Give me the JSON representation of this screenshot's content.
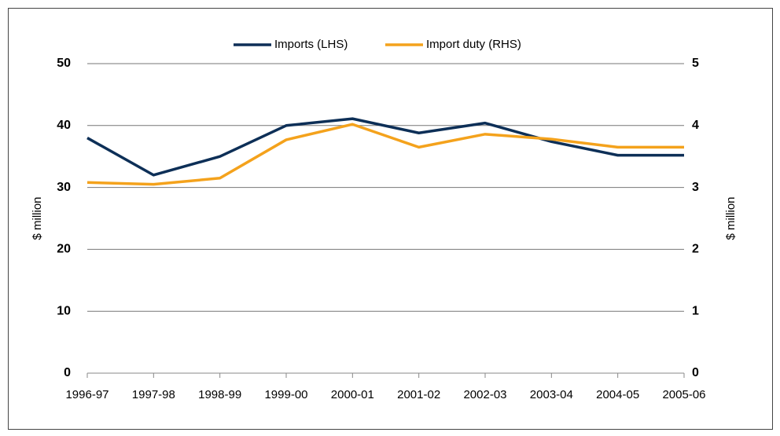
{
  "chart_data": {
    "type": "line",
    "categories": [
      "1996-97",
      "1997-98",
      "1998-99",
      "1999-00",
      "2000-01",
      "2001-02",
      "2002-03",
      "2003-04",
      "2004-05",
      "2005-06"
    ],
    "series": [
      {
        "name": "Imports (LHS)",
        "color": "#0d2f57",
        "values": [
          38,
          32,
          35,
          40,
          41.1,
          38.8,
          40.4,
          37.4,
          35.2,
          35.2
        ]
      },
      {
        "name": "Import duty (RHS)",
        "color": "#f4a21c",
        "axis": "y2",
        "values": [
          3.08,
          3.05,
          3.15,
          3.77,
          4.02,
          3.65,
          3.86,
          3.78,
          3.65,
          3.65
        ]
      }
    ],
    "ylabel": "$ million",
    "y2label": "$ million",
    "ylim": [
      0,
      50
    ],
    "yticks": [
      0,
      10,
      20,
      30,
      40,
      50
    ],
    "y2lim": [
      0,
      5
    ],
    "y2ticks": [
      0,
      1,
      2,
      3,
      4,
      5
    ],
    "grid": true,
    "legend": "top"
  }
}
